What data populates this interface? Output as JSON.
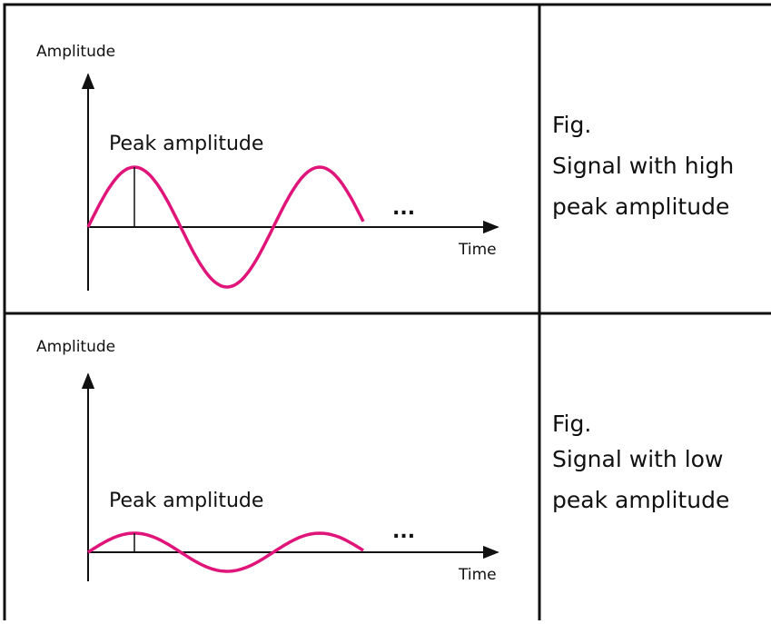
{
  "rows": [
    {
      "diagram": {
        "y_axis_label": "Amplitude",
        "x_axis_label": "Time",
        "peak_label": "Peak amplitude",
        "ellipsis": "..."
      },
      "caption": [
        "Fig.",
        "Signal with high",
        "peak amplitude"
      ]
    },
    {
      "diagram": {
        "y_axis_label": "Amplitude",
        "x_axis_label": "Time",
        "peak_label": "Peak amplitude",
        "ellipsis": "..."
      },
      "caption": [
        "Fig.",
        "Signal with low",
        "peak amplitude"
      ]
    }
  ]
}
